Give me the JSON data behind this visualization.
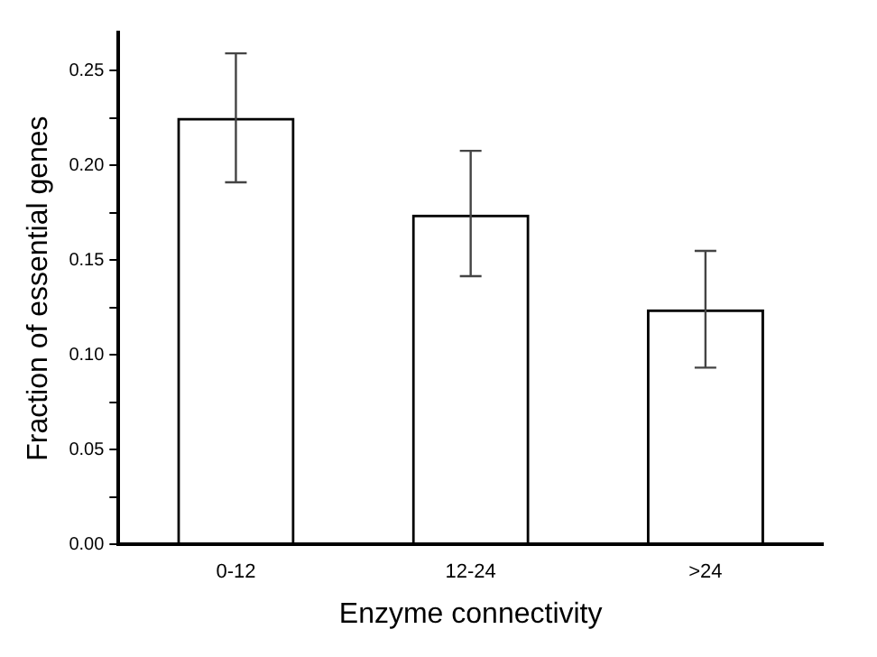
{
  "chart_data": {
    "type": "bar",
    "xlabel": "Enzyme connectivity",
    "ylabel": "Fraction of essential genes",
    "categories": [
      "0-12",
      "12-24",
      ">24"
    ],
    "values": [
      0.225,
      0.174,
      0.124
    ],
    "color": "#000000",
    "errors": [
      [
        0.191,
        0.259
      ],
      [
        0.1415,
        0.2076
      ],
      [
        0.0932,
        0.1548
      ]
    ],
    "ylim": [
      0,
      0.27
    ],
    "yticks": [
      {
        "value": 0,
        "label": "0.00"
      },
      {
        "value": 0.025,
        "label": null
      },
      {
        "value": 0.05,
        "label": "0.05"
      },
      {
        "value": 0.075,
        "label": null
      },
      {
        "value": 0.1,
        "label": "0.10"
      },
      {
        "value": 0.125,
        "label": null
      },
      {
        "value": 0.15,
        "label": "0.15"
      },
      {
        "value": 0.175,
        "label": null
      },
      {
        "value": 0.2,
        "label": "0.20"
      },
      {
        "value": 0.225,
        "label": null
      },
      {
        "value": 0.25,
        "label": "0.25"
      }
    ],
    "grid": false,
    "legend": false
  }
}
